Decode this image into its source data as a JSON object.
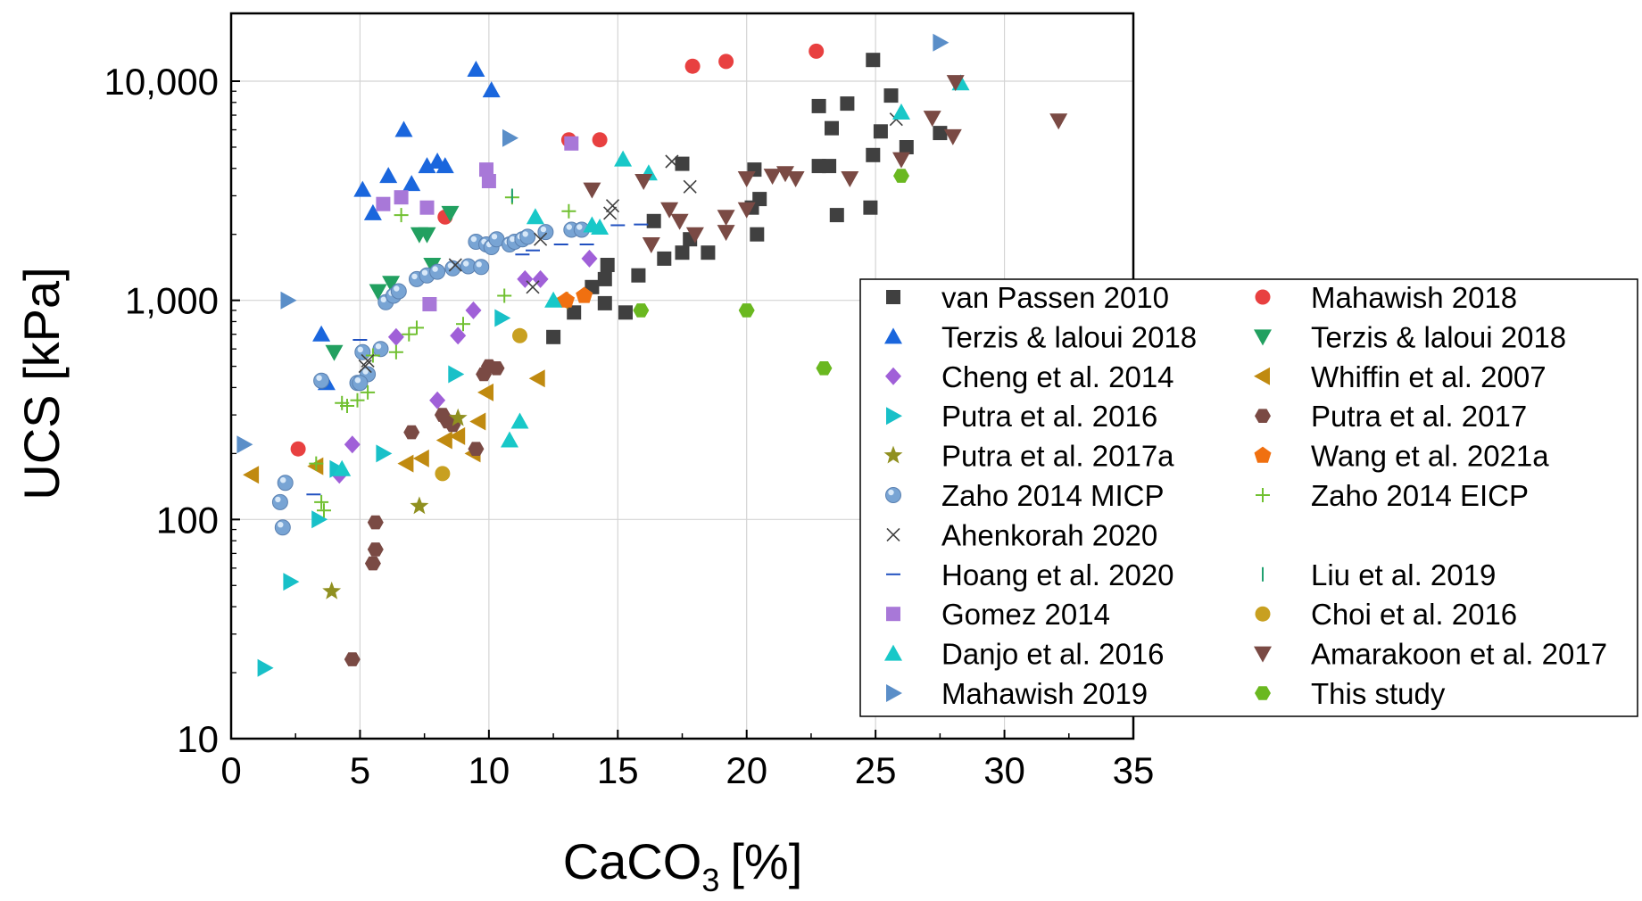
{
  "chart_data": {
    "type": "scatter",
    "title": "",
    "xlabel": "CaCO",
    "xlabel_sub": "3",
    "xlabel_unit": "[%]",
    "ylabel": "UCS [kPa]",
    "x_scale": "linear",
    "y_scale": "log",
    "xlim": [
      0,
      35
    ],
    "ylim": [
      10,
      20000
    ],
    "grid": true,
    "legend_position": "right",
    "xticks": [
      {
        "value": 0,
        "label": "0"
      },
      {
        "value": 5,
        "label": "5"
      },
      {
        "value": 10,
        "label": "10"
      },
      {
        "value": 15,
        "label": "15"
      },
      {
        "value": 20,
        "label": "20"
      },
      {
        "value": 25,
        "label": "25"
      },
      {
        "value": 30,
        "label": "30"
      },
      {
        "value": 35,
        "label": "35"
      }
    ],
    "yticks": [
      {
        "value": 10,
        "label": "10"
      },
      {
        "value": 100,
        "label": "100"
      },
      {
        "value": 1000,
        "label": "1,000"
      },
      {
        "value": 10000,
        "label": "10,000"
      }
    ],
    "series": [
      {
        "name": "van Passen 2010",
        "marker": "square",
        "color": "#404040",
        "points": [
          [
            12.5,
            680
          ],
          [
            13.3,
            880
          ],
          [
            14.0,
            1150
          ],
          [
            14.5,
            1250
          ],
          [
            14.5,
            970
          ],
          [
            14.6,
            1450
          ],
          [
            15.3,
            880
          ],
          [
            15.8,
            1300
          ],
          [
            16.4,
            2300
          ],
          [
            16.8,
            1550
          ],
          [
            17.5,
            1650
          ],
          [
            17.8,
            1900
          ],
          [
            18.5,
            1650
          ],
          [
            20.2,
            2650
          ],
          [
            20.3,
            3950
          ],
          [
            20.4,
            2000
          ],
          [
            20.5,
            2900
          ],
          [
            22.8,
            4100
          ],
          [
            23.2,
            4100
          ],
          [
            23.3,
            6100
          ],
          [
            23.5,
            2450
          ],
          [
            23.9,
            7900
          ],
          [
            24.8,
            2650
          ],
          [
            24.9,
            4600
          ],
          [
            25.2,
            5900
          ],
          [
            25.6,
            8600
          ],
          [
            24.9,
            12500
          ],
          [
            22.8,
            7700
          ],
          [
            26.2,
            5000
          ],
          [
            27.5,
            5800
          ],
          [
            17.5,
            4200
          ]
        ]
      },
      {
        "name": "Mahawish 2018",
        "marker": "circle",
        "color": "#e84040",
        "points": [
          [
            2.6,
            210
          ],
          [
            8.3,
            2400
          ],
          [
            13.1,
            5400
          ],
          [
            14.3,
            5400
          ],
          [
            17.9,
            11700
          ],
          [
            19.2,
            12300
          ],
          [
            22.7,
            13700
          ]
        ]
      },
      {
        "name": "Terzis & laloui 2018",
        "marker": "triangle-up",
        "color": "#1a66dd",
        "points": [
          [
            3.5,
            700
          ],
          [
            3.7,
            420
          ],
          [
            5.1,
            3200
          ],
          [
            5.5,
            2500
          ],
          [
            6.1,
            3700
          ],
          [
            6.7,
            6000
          ],
          [
            7.0,
            3400
          ],
          [
            7.6,
            4100
          ],
          [
            8.0,
            4300
          ],
          [
            8.3,
            4100
          ],
          [
            9.5,
            11300
          ],
          [
            10.1,
            9100
          ]
        ]
      },
      {
        "name": "Terzis & laloui 2018",
        "marker": "triangle-down",
        "color": "#22a060",
        "points": [
          [
            4.0,
            580
          ],
          [
            5.7,
            1100
          ],
          [
            6.2,
            1200
          ],
          [
            7.3,
            2000
          ],
          [
            7.6,
            2000
          ],
          [
            7.8,
            1450
          ],
          [
            8.5,
            2500
          ]
        ]
      },
      {
        "name": "Cheng et al. 2014",
        "marker": "diamond",
        "color": "#a060d8",
        "points": [
          [
            4.2,
            160
          ],
          [
            4.7,
            220
          ],
          [
            6.4,
            680
          ],
          [
            8.0,
            350
          ],
          [
            8.8,
            690
          ],
          [
            9.4,
            900
          ],
          [
            11.4,
            1250
          ],
          [
            12.0,
            1250
          ],
          [
            13.9,
            1550
          ]
        ]
      },
      {
        "name": "Whiffin et al. 2007",
        "marker": "triangle-left",
        "color": "#c08a10",
        "points": [
          [
            0.8,
            160
          ],
          [
            3.3,
            175
          ],
          [
            6.8,
            180
          ],
          [
            7.4,
            190
          ],
          [
            8.3,
            230
          ],
          [
            8.8,
            240
          ],
          [
            9.4,
            200
          ],
          [
            9.6,
            280
          ],
          [
            9.9,
            380
          ],
          [
            11.9,
            440
          ],
          [
            12.8,
            1000
          ]
        ]
      },
      {
        "name": "Putra et al. 2016",
        "marker": "triangle-right",
        "color": "#18c0c8",
        "points": [
          [
            1.3,
            21
          ],
          [
            2.3,
            52
          ],
          [
            3.4,
            100
          ],
          [
            4.1,
            170
          ],
          [
            5.9,
            200
          ],
          [
            8.7,
            460
          ],
          [
            10.5,
            830
          ]
        ]
      },
      {
        "name": "Putra et al. 2017",
        "marker": "hexagon",
        "color": "#7a4a44",
        "points": [
          [
            4.7,
            23
          ],
          [
            5.5,
            63
          ],
          [
            5.6,
            73
          ],
          [
            5.6,
            97
          ],
          [
            7.0,
            250
          ],
          [
            8.2,
            300
          ],
          [
            8.4,
            280
          ],
          [
            8.6,
            270
          ],
          [
            9.5,
            210
          ],
          [
            9.8,
            460
          ],
          [
            10.0,
            500
          ],
          [
            10.3,
            490
          ]
        ]
      },
      {
        "name": "Putra et al. 2017a",
        "marker": "star",
        "color": "#909020",
        "points": [
          [
            3.9,
            47
          ],
          [
            7.3,
            115
          ],
          [
            8.8,
            290
          ]
        ]
      },
      {
        "name": "Wang et al. 2021a",
        "marker": "pentagon",
        "color": "#f07010",
        "points": [
          [
            13.0,
            1000
          ],
          [
            13.7,
            1050
          ]
        ]
      },
      {
        "name": "Zaho 2014 MICP",
        "marker": "sphere",
        "color": "#78a4d4",
        "points": [
          [
            2.0,
            92
          ],
          [
            1.9,
            120
          ],
          [
            2.1,
            147
          ],
          [
            3.5,
            430
          ],
          [
            4.9,
            420
          ],
          [
            5.1,
            580
          ],
          [
            5.3,
            460
          ],
          [
            5.0,
            420
          ],
          [
            5.8,
            600
          ],
          [
            6.0,
            980
          ],
          [
            6.3,
            1050
          ],
          [
            6.5,
            1100
          ],
          [
            7.2,
            1250
          ],
          [
            7.6,
            1300
          ],
          [
            8.0,
            1350
          ],
          [
            8.6,
            1400
          ],
          [
            9.2,
            1430
          ],
          [
            9.7,
            1420
          ],
          [
            9.5,
            1850
          ],
          [
            9.9,
            1800
          ],
          [
            10.1,
            1750
          ],
          [
            10.3,
            1900
          ],
          [
            10.8,
            1800
          ],
          [
            11.0,
            1850
          ],
          [
            11.3,
            1900
          ],
          [
            11.5,
            1950
          ],
          [
            12.2,
            2050
          ],
          [
            13.2,
            2100
          ],
          [
            13.6,
            2100
          ]
        ]
      },
      {
        "name": "Zaho 2014 EICP",
        "marker": "plus",
        "color": "#70c030",
        "points": [
          [
            3.3,
            180
          ],
          [
            3.5,
            120
          ],
          [
            3.6,
            110
          ],
          [
            4.3,
            340
          ],
          [
            4.5,
            330
          ],
          [
            4.9,
            350
          ],
          [
            5.3,
            380
          ],
          [
            5.5,
            560
          ],
          [
            6.4,
            580
          ],
          [
            6.9,
            700
          ],
          [
            7.2,
            750
          ],
          [
            9.0,
            780
          ],
          [
            10.6,
            1050
          ],
          [
            10.9,
            2950
          ],
          [
            6.6,
            2450
          ],
          [
            13.1,
            2550
          ]
        ]
      },
      {
        "name": "Ahenkorah 2020",
        "marker": "x",
        "color": "#404040",
        "points": [
          [
            5.2,
            500
          ],
          [
            5.3,
            530
          ],
          [
            8.7,
            1450
          ],
          [
            11.7,
            1150
          ],
          [
            12.0,
            1900
          ],
          [
            14.7,
            2500
          ],
          [
            14.8,
            2700
          ],
          [
            17.1,
            4300
          ],
          [
            17.8,
            3300
          ],
          [
            25.8,
            6700
          ]
        ]
      },
      {
        "name": "Hoang et al.  2020",
        "marker": "hline",
        "color": "#2050c0",
        "points": [
          [
            3.2,
            130
          ],
          [
            5.0,
            660
          ],
          [
            11.3,
            1620
          ],
          [
            11.7,
            1690
          ],
          [
            12.8,
            1800
          ],
          [
            13.8,
            1800
          ],
          [
            15.0,
            2200
          ],
          [
            15.9,
            2220
          ]
        ]
      },
      {
        "name": "Liu et al. 2019",
        "marker": "vline",
        "color": "#20a070",
        "points": [
          [
            10.9,
            3000
          ]
        ]
      },
      {
        "name": "Gomez 2014",
        "marker": "square",
        "color": "#a878d8",
        "points": [
          [
            5.9,
            2750
          ],
          [
            6.6,
            2950
          ],
          [
            7.6,
            2650
          ],
          [
            7.7,
            960
          ],
          [
            9.9,
            3950
          ],
          [
            10.0,
            3500
          ],
          [
            13.2,
            5200
          ]
        ]
      },
      {
        "name": "Choi et al.  2016",
        "marker": "circle",
        "color": "#c8a020",
        "points": [
          [
            8.2,
            162
          ],
          [
            11.2,
            690
          ]
        ]
      },
      {
        "name": "Danjo et al. 2016",
        "marker": "triangle-up",
        "color": "#18c8c8",
        "points": [
          [
            4.3,
            170
          ],
          [
            10.8,
            230
          ],
          [
            11.2,
            280
          ],
          [
            11.8,
            2400
          ],
          [
            12.5,
            1000
          ],
          [
            14.0,
            2200
          ],
          [
            14.3,
            2150
          ],
          [
            15.2,
            4400
          ],
          [
            16.2,
            3800
          ],
          [
            26.0,
            7200
          ],
          [
            28.3,
            9800
          ]
        ]
      },
      {
        "name": "Amarakoon et al. 2017",
        "marker": "triangle-down",
        "color": "#7a4a44",
        "points": [
          [
            14.0,
            3200
          ],
          [
            16.0,
            3500
          ],
          [
            16.3,
            1800
          ],
          [
            17.0,
            2600
          ],
          [
            17.4,
            2300
          ],
          [
            18.0,
            2000
          ],
          [
            19.2,
            2050
          ],
          [
            19.2,
            2400
          ],
          [
            20.0,
            3600
          ],
          [
            20.0,
            2600
          ],
          [
            21.0,
            3700
          ],
          [
            21.5,
            3800
          ],
          [
            21.9,
            3600
          ],
          [
            24.0,
            3600
          ],
          [
            26.0,
            4400
          ],
          [
            27.2,
            6800
          ],
          [
            28.0,
            5600
          ],
          [
            28.1,
            9900
          ],
          [
            32.1,
            6600
          ]
        ]
      },
      {
        "name": "Mahawish 2019",
        "marker": "triangle-right",
        "color": "#5a8ec8",
        "points": [
          [
            0.5,
            220
          ],
          [
            2.2,
            1000
          ],
          [
            10.8,
            5500
          ],
          [
            27.5,
            15000
          ]
        ]
      },
      {
        "name": "This study",
        "marker": "hexagon",
        "color": "#6ab820",
        "points": [
          [
            15.9,
            900
          ],
          [
            20.0,
            900
          ],
          [
            23.0,
            490
          ],
          [
            26.0,
            3700
          ]
        ]
      }
    ],
    "legend": {
      "columns": [
        [
          "van Passen 2010",
          "Terzis & laloui 2018",
          "Cheng et al. 2014",
          "Putra et al. 2016",
          "Putra et al. 2017a",
          "Zaho 2014 MICP",
          "Ahenkorah 2020",
          "Hoang et al.  2020",
          "Gomez 2014",
          "Danjo et al. 2016",
          "Mahawish 2019"
        ],
        [
          "Mahawish 2018",
          "Terzis & laloui 2018",
          "Whiffin et al. 2007",
          "Putra et al. 2017",
          "Wang et al. 2021a",
          "Zaho 2014 EICP",
          "",
          "Liu et al. 2019",
          "Choi et al.  2016",
          "Amarakoon et al. 2017",
          "This study"
        ]
      ],
      "column_series": [
        [
          0,
          2,
          4,
          6,
          8,
          10,
          12,
          13,
          15,
          17,
          19
        ],
        [
          1,
          3,
          5,
          7,
          9,
          11,
          -1,
          14,
          16,
          18,
          20
        ]
      ]
    }
  }
}
